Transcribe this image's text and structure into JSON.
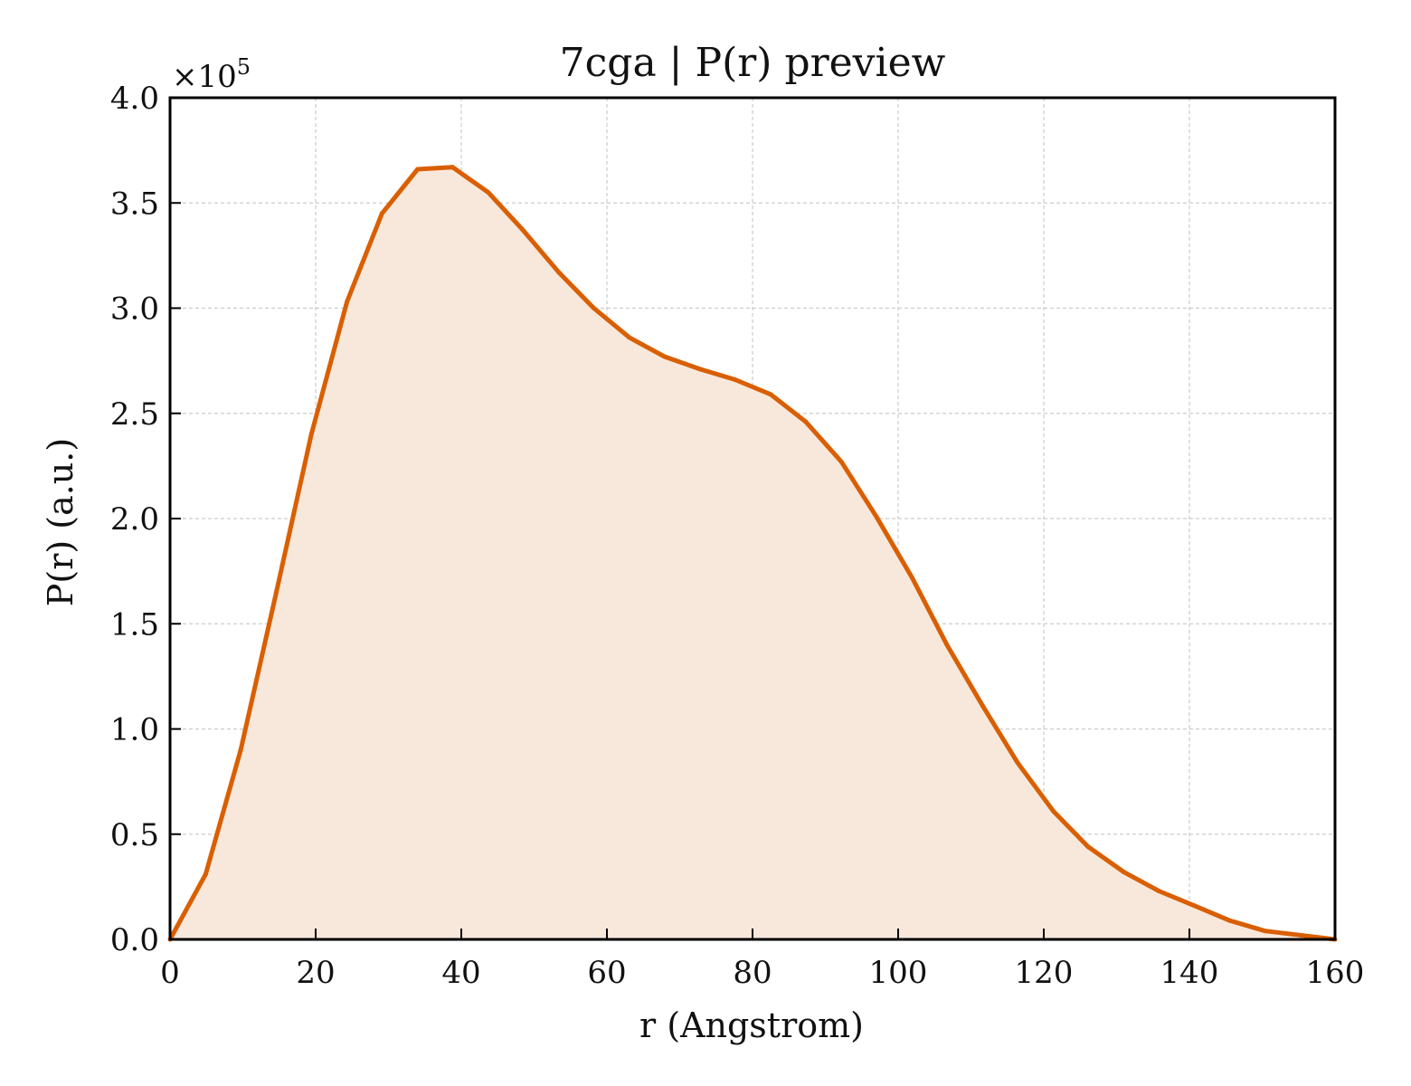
{
  "chart_data": {
    "type": "area",
    "title": "7cga | P(r) preview",
    "xlabel": "r (Angstrom)",
    "ylabel": "P(r) (a.u.)",
    "y_multiplier_label": "×10",
    "y_multiplier_exponent": "5",
    "xlim": [
      0,
      160
    ],
    "ylim": [
      0,
      4.0
    ],
    "y_scale_factor": 100000,
    "xticks": [
      0,
      20,
      40,
      60,
      80,
      100,
      120,
      140,
      160
    ],
    "xtick_labels": [
      "0",
      "20",
      "40",
      "60",
      "80",
      "100",
      "120",
      "140",
      "160"
    ],
    "yticks": [
      0,
      0.5,
      1.0,
      1.5,
      2.0,
      2.5,
      3.0,
      3.5,
      4.0
    ],
    "ytick_labels": [
      "0.0",
      "0.5",
      "1.0",
      "1.5",
      "2.0",
      "2.5",
      "3.0",
      "3.5",
      "4.0"
    ],
    "grid": true,
    "series": [
      {
        "x": [
          0,
          4.9,
          9.7,
          14.6,
          19.4,
          24.3,
          29.1,
          34.0,
          38.8,
          43.7,
          48.5,
          53.4,
          58.2,
          63.1,
          67.9,
          72.8,
          77.6,
          82.5,
          87.3,
          92.2,
          97.0,
          101.9,
          106.7,
          111.6,
          116.4,
          121.3,
          126.1,
          131.0,
          135.8,
          140.7,
          145.5,
          150.4,
          155.2,
          160.0
        ],
        "values": [
          0.0,
          0.31,
          0.9,
          1.65,
          2.4,
          3.03,
          3.45,
          3.66,
          3.67,
          3.55,
          3.37,
          3.17,
          3.0,
          2.86,
          2.77,
          2.71,
          2.66,
          2.59,
          2.46,
          2.27,
          2.01,
          1.72,
          1.4,
          1.11,
          0.84,
          0.61,
          0.44,
          0.32,
          0.23,
          0.16,
          0.09,
          0.04,
          0.02,
          0.0
        ]
      }
    ],
    "colors": {
      "line": "#d95f02",
      "fill": "#f8e8dc",
      "grid": "#cccccc",
      "axis": "#000000"
    }
  }
}
